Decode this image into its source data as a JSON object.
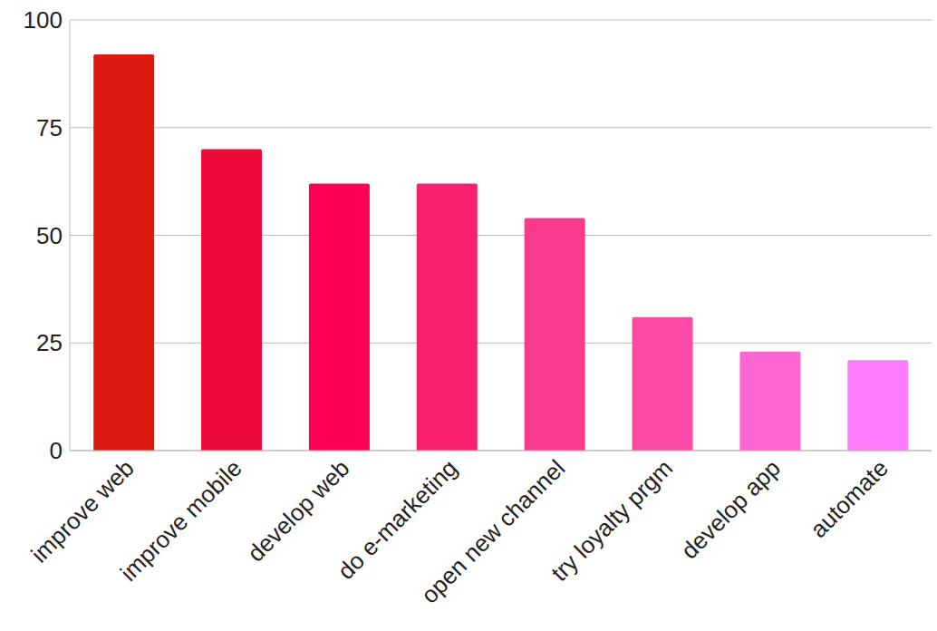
{
  "chart_data": {
    "type": "bar",
    "categories": [
      "improve web",
      "improve mobile",
      "develop web",
      "do e-marketing",
      "open new channel",
      "try loyalty prgm",
      "develop app",
      "automate"
    ],
    "values": [
      92,
      70,
      62,
      62,
      54,
      31,
      23,
      21
    ],
    "colors": [
      "#dc1a10",
      "#ee0a3a",
      "#fe0056",
      "#f9206f",
      "#fb3a8e",
      "#fc4aa6",
      "#fd66d0",
      "#fe7cfc"
    ],
    "ylim": [
      0,
      100
    ],
    "yticks": [
      0,
      25,
      50,
      75,
      100
    ],
    "grid": true
  }
}
